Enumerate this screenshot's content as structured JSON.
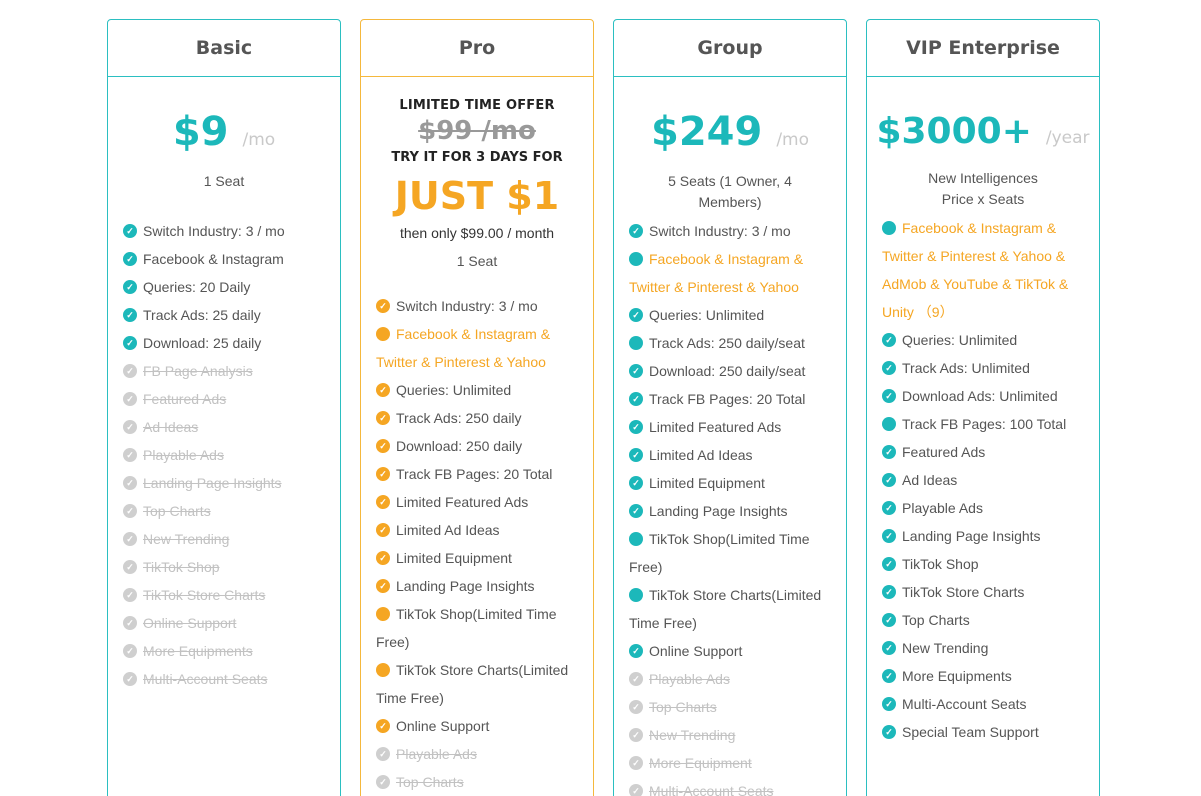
{
  "plans": [
    {
      "name": "Basic",
      "price": "$9",
      "period": "/mo",
      "seats": [
        "1 Seat"
      ],
      "features": [
        {
          "text": "Switch Industry: 3 / mo",
          "state": "on"
        },
        {
          "text": "Facebook & Instagram",
          "state": "on"
        },
        {
          "text": "Queries: 20 Daily",
          "state": "on"
        },
        {
          "text": "Track Ads: 25 daily",
          "state": "on"
        },
        {
          "text": "Download: 25 daily",
          "state": "on"
        },
        {
          "text": "FB Page Analysis",
          "state": "off"
        },
        {
          "text": "Featured Ads",
          "state": "off"
        },
        {
          "text": "Ad Ideas",
          "state": "off"
        },
        {
          "text": "Playable Ads",
          "state": "off"
        },
        {
          "text": "Landing Page Insights",
          "state": "off"
        },
        {
          "text": "Top Charts",
          "state": "off"
        },
        {
          "text": "New Trending",
          "state": "off"
        },
        {
          "text": "TikTok Shop",
          "state": "off"
        },
        {
          "text": "TikTok Store Charts",
          "state": "off"
        },
        {
          "text": "Online Support",
          "state": "off"
        },
        {
          "text": "More Equipments",
          "state": "off"
        },
        {
          "text": "Multi-Account Seats",
          "state": "off"
        }
      ]
    },
    {
      "name": "Pro",
      "offer_title": "LIMITED TIME OFFER",
      "old_price": "$99 /mo",
      "try_line": "TRY IT FOR 3 DAYS FOR",
      "just_price": "JUST $1",
      "then_line": "then only $99.00 / month",
      "seats": [
        "1 Seat"
      ],
      "features": [
        {
          "text": "Switch Industry: 3 / mo",
          "state": "on"
        },
        {
          "text": "Facebook & Instagram & Twitter & Pinterest & Yahoo",
          "state": "highlight"
        },
        {
          "text": "Queries: Unlimited",
          "state": "on"
        },
        {
          "text": "Track Ads: 250 daily",
          "state": "on"
        },
        {
          "text": "Download: 250 daily",
          "state": "on"
        },
        {
          "text": "Track FB Pages: 20 Total",
          "state": "on"
        },
        {
          "text": "Limited Featured Ads",
          "state": "on"
        },
        {
          "text": "Limited Ad Ideas",
          "state": "on"
        },
        {
          "text": "Limited Equipment",
          "state": "on"
        },
        {
          "text": "Landing Page Insights",
          "state": "on"
        },
        {
          "text": "TikTok Shop(Limited Time Free)",
          "state": "on"
        },
        {
          "text": "TikTok Store Charts(Limited Time Free)",
          "state": "on"
        },
        {
          "text": "Online Support",
          "state": "on"
        },
        {
          "text": "Playable Ads",
          "state": "off"
        },
        {
          "text": "Top Charts",
          "state": "off"
        }
      ]
    },
    {
      "name": "Group",
      "price": "$249",
      "period": "/mo",
      "seats": [
        "5 Seats (1 Owner, 4",
        "Members)"
      ],
      "features": [
        {
          "text": "Switch Industry: 3 / mo",
          "state": "on"
        },
        {
          "text": "Facebook & Instagram & Twitter & Pinterest & Yahoo",
          "state": "highlight"
        },
        {
          "text": "Queries: Unlimited",
          "state": "on"
        },
        {
          "text": "Track Ads: 250 daily/seat",
          "state": "on"
        },
        {
          "text": "Download: 250 daily/seat",
          "state": "on"
        },
        {
          "text": "Track FB Pages: 20 Total",
          "state": "on"
        },
        {
          "text": "Limited Featured Ads",
          "state": "on"
        },
        {
          "text": "Limited Ad Ideas",
          "state": "on"
        },
        {
          "text": "Limited Equipment",
          "state": "on"
        },
        {
          "text": "Landing Page Insights",
          "state": "on"
        },
        {
          "text": "TikTok Shop(Limited Time Free)",
          "state": "on"
        },
        {
          "text": "TikTok Store Charts(Limited Time Free)",
          "state": "on"
        },
        {
          "text": "Online Support",
          "state": "on"
        },
        {
          "text": "Playable Ads",
          "state": "off"
        },
        {
          "text": "Top Charts",
          "state": "off"
        },
        {
          "text": "New Trending",
          "state": "off"
        },
        {
          "text": "More Equipment",
          "state": "off"
        },
        {
          "text": "Multi-Account Seats",
          "state": "off"
        }
      ]
    },
    {
      "name": "VIP Enterprise",
      "price": "$3000+",
      "period": "/year",
      "seats": [
        "New Intelligences",
        "Price x Seats"
      ],
      "features": [
        {
          "text": "Facebook & Instagram & Twitter & Pinterest & Yahoo & AdMob & YouTube & TikTok & Unity （9）",
          "state": "highlight"
        },
        {
          "text": "Queries: Unlimited",
          "state": "on"
        },
        {
          "text": "Track Ads: Unlimited",
          "state": "on"
        },
        {
          "text": "Download Ads: Unlimited",
          "state": "on"
        },
        {
          "text": "Track FB Pages: 100 Total",
          "state": "on"
        },
        {
          "text": "Featured Ads",
          "state": "on"
        },
        {
          "text": "Ad Ideas",
          "state": "on"
        },
        {
          "text": "Playable Ads",
          "state": "on"
        },
        {
          "text": "Landing Page Insights",
          "state": "on"
        },
        {
          "text": "TikTok Shop",
          "state": "on"
        },
        {
          "text": "TikTok Store Charts",
          "state": "on"
        },
        {
          "text": "Top Charts",
          "state": "on"
        },
        {
          "text": "New Trending",
          "state": "on"
        },
        {
          "text": "More Equipments",
          "state": "on"
        },
        {
          "text": "Multi-Account Seats",
          "state": "on"
        },
        {
          "text": "Special Team Support",
          "state": "on"
        }
      ]
    }
  ],
  "colors": {
    "teal": "#1cb8ba",
    "teal_border": "#2bbfc1",
    "orange": "#f5a623",
    "orange_border": "#f5b83d",
    "disabled": "#c2c2c2"
  },
  "icons": {
    "check": "check-circle-icon"
  }
}
